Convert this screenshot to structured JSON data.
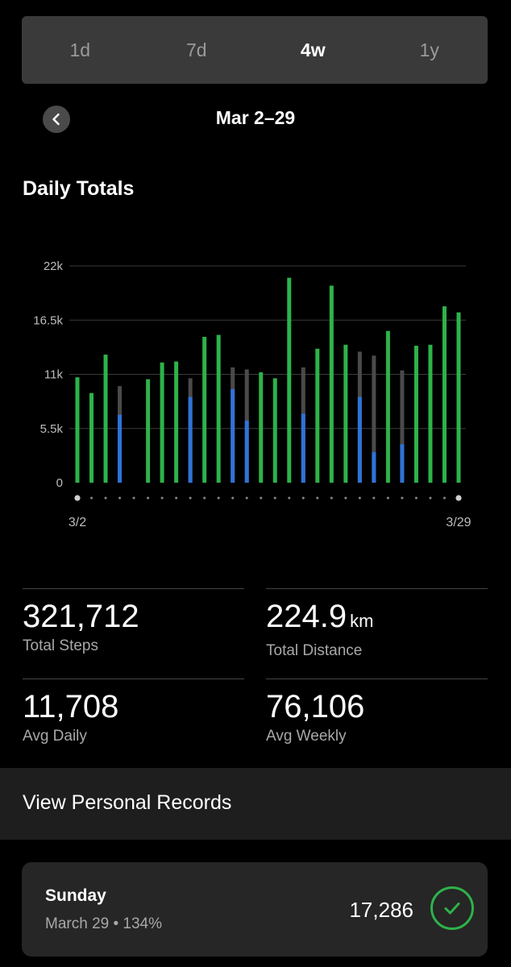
{
  "tabs": [
    {
      "label": "1d",
      "active": false
    },
    {
      "label": "7d",
      "active": false
    },
    {
      "label": "4w",
      "active": true
    },
    {
      "label": "1y",
      "active": false
    }
  ],
  "header": {
    "range": "Mar 2–29",
    "back_icon": "chevron-left-icon"
  },
  "section_title": "Daily Totals",
  "colors": {
    "goal_met": "#2db34a",
    "progress": "#2f73d8",
    "remaining": "#4a4a4a",
    "grid": "#3c3c3c"
  },
  "chart_data": {
    "type": "bar",
    "title": "Daily Totals",
    "yticks": [
      "22k",
      "16.5k",
      "11k",
      "5.5k",
      "0"
    ],
    "ylim": [
      0,
      22000
    ],
    "x_start_label": "3/2",
    "x_end_label": "3/29",
    "grid": true,
    "series": [
      {
        "name": "steps",
        "values": [
          10700,
          9100,
          13000,
          6900,
          0,
          10500,
          12200,
          12300,
          8700,
          14800,
          15000,
          9500,
          6300,
          11200,
          10600,
          20800,
          7000,
          13600,
          20000,
          14000,
          8700,
          3100,
          15400,
          3900,
          13900,
          14000,
          17900,
          17286
        ]
      },
      {
        "name": "goal",
        "values": [
          0,
          0,
          0,
          9800,
          0,
          0,
          0,
          0,
          10600,
          0,
          0,
          11700,
          11500,
          0,
          0,
          0,
          11700,
          0,
          0,
          0,
          13300,
          12900,
          0,
          11400,
          0,
          0,
          0,
          0
        ]
      }
    ]
  },
  "stats": [
    {
      "value": "321,712",
      "unit": "",
      "label": "Total Steps"
    },
    {
      "value": "224.9",
      "unit": "km",
      "label": "Total Distance"
    },
    {
      "value": "11,708",
      "unit": "",
      "label": "Avg Daily"
    },
    {
      "value": "76,106",
      "unit": "",
      "label": "Avg Weekly"
    }
  ],
  "records_link": "View Personal Records",
  "day_card": {
    "day": "Sunday",
    "subtitle": "March 29 • 134%",
    "steps": "17,286",
    "icon": "check-circle-icon"
  }
}
